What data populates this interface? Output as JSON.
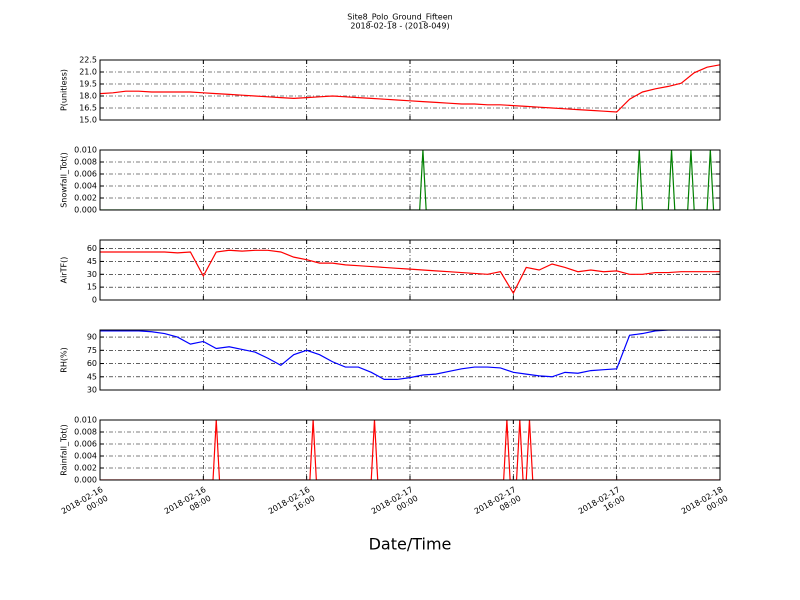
{
  "chart_data": [
    {
      "type": "line",
      "title": "Site8_Polo_Ground_Fifteen",
      "subtitle": "2018-02-18 - (2018-049)",
      "ylabel": "P(unitless)",
      "color": "#ff0000",
      "grid": true,
      "xlim": [
        "2018-02-16 00:00",
        "2018-02-18 00:00"
      ],
      "xticks": [
        "2018-02-16 00:00",
        "2018-02-16 08:00",
        "2018-02-16 16:00",
        "2018-02-17 00:00",
        "2018-02-17 08:00",
        "2018-02-17 16:00",
        "2018-02-18 00:00"
      ],
      "ylim": [
        15,
        22.5
      ],
      "yticks": [
        {
          "value": 15,
          "label": "15.0"
        },
        16.5,
        {
          "value": 18,
          "label": "18.0"
        },
        19.5,
        {
          "value": 21,
          "label": "21.0"
        },
        22.5
      ],
      "x": [
        "2018-02-16 00:00",
        "2018-02-16 01:00",
        "2018-02-16 02:00",
        "2018-02-16 03:00",
        "2018-02-16 04:00",
        "2018-02-16 05:00",
        "2018-02-16 06:00",
        "2018-02-16 07:00",
        "2018-02-16 08:00",
        "2018-02-16 09:00",
        "2018-02-16 10:00",
        "2018-02-16 11:00",
        "2018-02-16 12:00",
        "2018-02-16 13:00",
        "2018-02-16 14:00",
        "2018-02-16 15:00",
        "2018-02-16 16:00",
        "2018-02-16 17:00",
        "2018-02-16 18:00",
        "2018-02-16 19:00",
        "2018-02-16 20:00",
        "2018-02-16 21:00",
        "2018-02-16 22:00",
        "2018-02-16 23:00",
        "2018-02-17 00:00",
        "2018-02-17 01:00",
        "2018-02-17 02:00",
        "2018-02-17 03:00",
        "2018-02-17 04:00",
        "2018-02-17 05:00",
        "2018-02-17 06:00",
        "2018-02-17 07:00",
        "2018-02-17 08:00",
        "2018-02-17 09:00",
        "2018-02-17 10:00",
        "2018-02-17 11:00",
        "2018-02-17 12:00",
        "2018-02-17 13:00",
        "2018-02-17 14:00",
        "2018-02-17 15:00",
        "2018-02-17 16:00",
        "2018-02-17 17:00",
        "2018-02-17 18:00",
        "2018-02-17 19:00",
        "2018-02-17 20:00",
        "2018-02-17 21:00",
        "2018-02-17 22:00",
        "2018-02-17 23:00",
        "2018-02-18 00:00"
      ],
      "values": [
        18.3,
        18.4,
        18.6,
        18.6,
        18.5,
        18.5,
        18.5,
        18.5,
        18.4,
        18.3,
        18.2,
        18.1,
        18.0,
        17.9,
        17.8,
        17.7,
        17.8,
        17.9,
        18.0,
        17.9,
        17.8,
        17.7,
        17.6,
        17.5,
        17.4,
        17.3,
        17.2,
        17.1,
        17.0,
        17.0,
        16.9,
        16.9,
        16.8,
        16.7,
        16.6,
        16.5,
        16.4,
        16.3,
        16.2,
        16.1,
        16.0,
        17.6,
        18.5,
        18.9,
        19.2,
        19.6,
        20.9,
        21.6,
        21.9
      ]
    },
    {
      "type": "line",
      "ylabel": "Snowfall_Tot()",
      "color": "#008000",
      "grid": true,
      "xlim": [
        "2018-02-16 00:00",
        "2018-02-18 00:00"
      ],
      "xticks": [
        "2018-02-16 00:00",
        "2018-02-16 08:00",
        "2018-02-16 16:00",
        "2018-02-17 00:00",
        "2018-02-17 08:00",
        "2018-02-17 16:00",
        "2018-02-18 00:00"
      ],
      "ylim": [
        0,
        0.01
      ],
      "yticks": [
        {
          "value": 0,
          "label": "0.000"
        },
        {
          "value": 0.002,
          "label": "0.002"
        },
        {
          "value": 0.004,
          "label": "0.004"
        },
        {
          "value": 0.006,
          "label": "0.006"
        },
        {
          "value": 0.008,
          "label": "0.008"
        },
        {
          "value": 0.01,
          "label": "0.010"
        }
      ],
      "x": [
        "2018-02-16 00:00",
        "2018-02-17 00:45",
        "2018-02-17 01:00",
        "2018-02-17 01:15",
        "2018-02-17 17:30",
        "2018-02-17 17:45",
        "2018-02-17 18:00",
        "2018-02-17 20:00",
        "2018-02-17 20:15",
        "2018-02-17 20:30",
        "2018-02-17 21:30",
        "2018-02-17 21:45",
        "2018-02-17 22:00",
        "2018-02-17 23:00",
        "2018-02-17 23:15",
        "2018-02-17 23:30",
        "2018-02-18 00:00"
      ],
      "values": [
        0,
        0,
        0.01,
        0,
        0,
        0.01,
        0,
        0,
        0.01,
        0,
        0,
        0.01,
        0,
        0,
        0.01,
        0,
        0
      ]
    },
    {
      "type": "line",
      "ylabel": "AirTF()",
      "color": "#ff0000",
      "grid": true,
      "xlim": [
        "2018-02-16 00:00",
        "2018-02-18 00:00"
      ],
      "xticks": [
        "2018-02-16 00:00",
        "2018-02-16 08:00",
        "2018-02-16 16:00",
        "2018-02-17 00:00",
        "2018-02-17 08:00",
        "2018-02-17 16:00",
        "2018-02-18 00:00"
      ],
      "ylim": [
        0,
        70
      ],
      "yticks": [
        0,
        15,
        30,
        45,
        60
      ],
      "x": [
        "2018-02-16 00:00",
        "2018-02-16 01:00",
        "2018-02-16 02:00",
        "2018-02-16 03:00",
        "2018-02-16 04:00",
        "2018-02-16 05:00",
        "2018-02-16 06:00",
        "2018-02-16 07:00",
        "2018-02-16 08:00",
        "2018-02-16 09:00",
        "2018-02-16 10:00",
        "2018-02-16 11:00",
        "2018-02-16 12:00",
        "2018-02-16 13:00",
        "2018-02-16 14:00",
        "2018-02-16 15:00",
        "2018-02-16 16:00",
        "2018-02-16 17:00",
        "2018-02-16 18:00",
        "2018-02-16 19:00",
        "2018-02-16 20:00",
        "2018-02-16 21:00",
        "2018-02-16 22:00",
        "2018-02-16 23:00",
        "2018-02-17 00:00",
        "2018-02-17 01:00",
        "2018-02-17 02:00",
        "2018-02-17 03:00",
        "2018-02-17 04:00",
        "2018-02-17 05:00",
        "2018-02-17 06:00",
        "2018-02-17 07:00",
        "2018-02-17 08:00",
        "2018-02-17 09:00",
        "2018-02-17 10:00",
        "2018-02-17 11:00",
        "2018-02-17 12:00",
        "2018-02-17 13:00",
        "2018-02-17 14:00",
        "2018-02-17 15:00",
        "2018-02-17 16:00",
        "2018-02-17 17:00",
        "2018-02-17 18:00",
        "2018-02-17 19:00",
        "2018-02-17 20:00",
        "2018-02-17 21:00",
        "2018-02-17 22:00",
        "2018-02-17 23:00",
        "2018-02-18 00:00"
      ],
      "values": [
        56,
        56,
        56,
        56,
        56,
        56,
        55,
        56,
        28,
        56,
        58,
        57,
        58,
        58,
        56,
        50,
        47,
        43,
        43,
        41,
        40,
        39,
        38,
        37,
        36,
        35,
        34,
        33,
        32,
        31,
        30,
        33,
        8,
        38,
        35,
        42,
        38,
        33,
        35,
        33,
        34,
        30,
        30,
        32,
        32,
        33,
        33,
        33,
        33
      ]
    },
    {
      "type": "line",
      "ylabel": "RH(%)",
      "color": "#0000ff",
      "grid": true,
      "xlim": [
        "2018-02-16 00:00",
        "2018-02-18 00:00"
      ],
      "xticks": [
        "2018-02-16 00:00",
        "2018-02-16 08:00",
        "2018-02-16 16:00",
        "2018-02-17 00:00",
        "2018-02-17 08:00",
        "2018-02-17 16:00",
        "2018-02-18 00:00"
      ],
      "ylim": [
        30,
        98
      ],
      "yticks": [
        30,
        45,
        60,
        75,
        90
      ],
      "x": [
        "2018-02-16 00:00",
        "2018-02-16 01:00",
        "2018-02-16 02:00",
        "2018-02-16 03:00",
        "2018-02-16 04:00",
        "2018-02-16 05:00",
        "2018-02-16 06:00",
        "2018-02-16 07:00",
        "2018-02-16 08:00",
        "2018-02-16 09:00",
        "2018-02-16 10:00",
        "2018-02-16 11:00",
        "2018-02-16 12:00",
        "2018-02-16 13:00",
        "2018-02-16 14:00",
        "2018-02-16 15:00",
        "2018-02-16 16:00",
        "2018-02-16 17:00",
        "2018-02-16 18:00",
        "2018-02-16 19:00",
        "2018-02-16 20:00",
        "2018-02-16 21:00",
        "2018-02-16 22:00",
        "2018-02-16 23:00",
        "2018-02-17 00:00",
        "2018-02-17 01:00",
        "2018-02-17 02:00",
        "2018-02-17 03:00",
        "2018-02-17 04:00",
        "2018-02-17 05:00",
        "2018-02-17 06:00",
        "2018-02-17 07:00",
        "2018-02-17 08:00",
        "2018-02-17 09:00",
        "2018-02-17 10:00",
        "2018-02-17 11:00",
        "2018-02-17 12:00",
        "2018-02-17 13:00",
        "2018-02-17 14:00",
        "2018-02-17 15:00",
        "2018-02-17 16:00",
        "2018-02-17 17:00",
        "2018-02-17 18:00",
        "2018-02-17 19:00",
        "2018-02-17 20:00",
        "2018-02-17 21:00",
        "2018-02-17 22:00",
        "2018-02-17 23:00",
        "2018-02-18 00:00"
      ],
      "values": [
        97,
        97,
        97,
        97,
        96,
        94,
        90,
        82,
        85,
        77,
        79,
        76,
        73,
        66,
        58,
        70,
        75,
        70,
        62,
        56,
        56,
        50,
        42,
        42,
        44,
        47,
        48,
        51,
        54,
        56,
        56,
        55,
        50,
        48,
        46,
        45,
        50,
        49,
        52,
        53,
        54,
        92,
        94,
        97,
        98,
        98,
        98,
        98,
        98
      ]
    },
    {
      "type": "line",
      "ylabel": "Rainfall_Tot()",
      "xlabel": "Date/Time",
      "color": "#ff0000",
      "grid": true,
      "xlim": [
        "2018-02-16 00:00",
        "2018-02-18 00:00"
      ],
      "xticks": [
        "2018-02-16 00:00",
        "2018-02-16 08:00",
        "2018-02-16 16:00",
        "2018-02-17 00:00",
        "2018-02-17 08:00",
        "2018-02-17 16:00",
        "2018-02-18 00:00"
      ],
      "ylim": [
        0,
        0.01
      ],
      "yticks": [
        {
          "value": 0,
          "label": "0.000"
        },
        {
          "value": 0.002,
          "label": "0.002"
        },
        {
          "value": 0.004,
          "label": "0.004"
        },
        {
          "value": 0.006,
          "label": "0.006"
        },
        {
          "value": 0.008,
          "label": "0.008"
        },
        {
          "value": 0.01,
          "label": "0.010"
        }
      ],
      "x": [
        "2018-02-16 00:00",
        "2018-02-16 08:45",
        "2018-02-16 09:00",
        "2018-02-16 09:15",
        "2018-02-16 16:15",
        "2018-02-16 16:30",
        "2018-02-16 16:45",
        "2018-02-16 21:00",
        "2018-02-16 21:15",
        "2018-02-16 21:30",
        "2018-02-17 07:15",
        "2018-02-17 07:30",
        "2018-02-17 07:45",
        "2018-02-17 08:15",
        "2018-02-17 08:30",
        "2018-02-17 08:45",
        "2018-02-17 09:00",
        "2018-02-17 09:15",
        "2018-02-17 09:30",
        "2018-02-18 00:00"
      ],
      "values": [
        0,
        0,
        0.01,
        0,
        0,
        0.01,
        0,
        0,
        0.01,
        0,
        0,
        0.01,
        0,
        0,
        0.01,
        0,
        0,
        0.01,
        0,
        0
      ]
    }
  ]
}
